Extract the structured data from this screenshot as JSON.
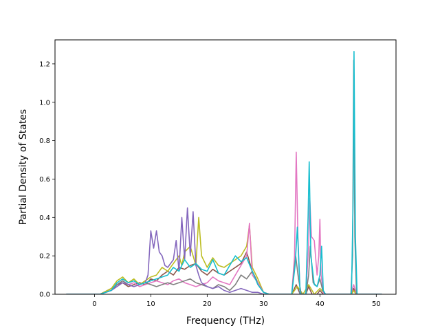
{
  "chart_data": {
    "type": "line",
    "title": "",
    "xlabel": "Frequency (THz)",
    "ylabel": "Partial Density of States",
    "xlim": [
      -7.0,
      53.5
    ],
    "ylim": [
      0.0,
      1.325
    ],
    "xticks": [
      0,
      10,
      20,
      30,
      40,
      50
    ],
    "yticks": [
      0.0,
      0.2,
      0.4,
      0.6,
      0.8,
      1.0,
      1.2
    ],
    "xtick_labels": [
      "0",
      "10",
      "20",
      "30",
      "40",
      "50"
    ],
    "ytick_labels": [
      "0.0",
      "0.2",
      "0.4",
      "0.6",
      "0.8",
      "1.0",
      "1.2"
    ],
    "grid": false,
    "legend": "none",
    "series": [
      {
        "color": "#8c564b",
        "x": [
          -5,
          1,
          3,
          4,
          5,
          6,
          7,
          8,
          9,
          10,
          11,
          12,
          13,
          14,
          15,
          16,
          17,
          18,
          19,
          20,
          21,
          22,
          23,
          24,
          25,
          26,
          27,
          28,
          29,
          30,
          31,
          35,
          35.8,
          36.5,
          37.5,
          38,
          38.6,
          39.5,
          40,
          40.6,
          41,
          45.6,
          46,
          46.4,
          47,
          51
        ],
        "y": [
          0,
          0,
          0.03,
          0.05,
          0.06,
          0.04,
          0.05,
          0.06,
          0.05,
          0.08,
          0.07,
          0.1,
          0.12,
          0.1,
          0.14,
          0.13,
          0.15,
          0.16,
          0.12,
          0.1,
          0.13,
          0.11,
          0.1,
          0.12,
          0.14,
          0.16,
          0.22,
          0.12,
          0.06,
          0.01,
          0,
          0,
          0.05,
          0,
          0,
          0.04,
          0,
          0,
          0.02,
          0,
          0,
          0,
          0.03,
          0,
          0,
          0
        ]
      },
      {
        "color": "#bcbd22",
        "x": [
          -5,
          1,
          3,
          4,
          5,
          6,
          7,
          8,
          9,
          10,
          11,
          12,
          13,
          14,
          15,
          15.5,
          16,
          17,
          18,
          18.5,
          19,
          20,
          21,
          22,
          23,
          24,
          25,
          26,
          27,
          27.5,
          28,
          29,
          30,
          31,
          35,
          36,
          37,
          38,
          39,
          40,
          41,
          45.6,
          46,
          46.4,
          47,
          51
        ],
        "y": [
          0,
          0,
          0.03,
          0.07,
          0.09,
          0.06,
          0.08,
          0.05,
          0.07,
          0.09,
          0.1,
          0.14,
          0.12,
          0.16,
          0.2,
          0.15,
          0.22,
          0.25,
          0.15,
          0.4,
          0.2,
          0.14,
          0.19,
          0.15,
          0.14,
          0.16,
          0.18,
          0.2,
          0.25,
          0.36,
          0.14,
          0.08,
          0.01,
          0,
          0,
          0.04,
          0,
          0.05,
          0,
          0.03,
          0,
          0,
          0.02,
          0,
          0,
          0
        ]
      },
      {
        "color": "#e377c2",
        "x": [
          -5,
          1,
          3,
          4,
          5,
          6,
          7,
          8,
          9,
          10,
          11,
          12,
          13,
          14,
          15,
          16,
          17,
          18,
          19,
          20,
          21,
          22,
          23,
          24,
          25,
          26,
          27,
          27.5,
          28,
          29,
          30,
          31,
          35,
          35.5,
          35.8,
          36.1,
          36.5,
          37.5,
          38,
          38.2,
          38.5,
          39,
          39.5,
          39.8,
          40,
          40.2,
          40.6,
          41,
          45.5,
          46,
          46.5,
          51
        ],
        "y": [
          0,
          0,
          0.02,
          0.05,
          0.07,
          0.05,
          0.06,
          0.04,
          0.05,
          0.06,
          0.07,
          0.06,
          0.05,
          0.07,
          0.08,
          0.06,
          0.05,
          0.04,
          0.05,
          0.06,
          0.09,
          0.07,
          0.06,
          0.05,
          0.1,
          0.15,
          0.2,
          0.37,
          0.1,
          0.06,
          0.01,
          0,
          0,
          0.2,
          0.74,
          0.3,
          0,
          0,
          0.25,
          0.5,
          0.3,
          0.28,
          0.1,
          0.2,
          0.39,
          0.1,
          0.01,
          0,
          0,
          0.05,
          0,
          0
        ]
      },
      {
        "color": "#7f7f7f",
        "x": [
          -5,
          1,
          3,
          4,
          5,
          6,
          7,
          8,
          9,
          10,
          11,
          12,
          13,
          14,
          15,
          16,
          17,
          18,
          19,
          20,
          21,
          22,
          23,
          24,
          25,
          26,
          27,
          28,
          29,
          30,
          31,
          35,
          35.7,
          36.2,
          36.7,
          37.5,
          38,
          38.3,
          38.8,
          39.5,
          40,
          40.5,
          41,
          45.5,
          45.8,
          46,
          46.2,
          46.5,
          51
        ],
        "y": [
          0,
          0,
          0.02,
          0.05,
          0.07,
          0.05,
          0.04,
          0.05,
          0.06,
          0.05,
          0.04,
          0.05,
          0.06,
          0.05,
          0.06,
          0.07,
          0.08,
          0.06,
          0.05,
          0.04,
          0.03,
          0.05,
          0.04,
          0.02,
          0.05,
          0.1,
          0.08,
          0.12,
          0.05,
          0.01,
          0,
          0,
          0.2,
          0.08,
          0,
          0,
          0.1,
          0.25,
          0.06,
          0.04,
          0.08,
          0.02,
          0,
          0,
          0.2,
          1.22,
          0.3,
          0,
          0
        ]
      },
      {
        "color": "#8467bd",
        "x": [
          -5,
          1,
          3,
          4,
          5,
          6,
          7,
          8,
          9,
          9.5,
          10,
          10.5,
          11,
          11.5,
          12,
          12.5,
          13,
          14,
          14.5,
          15,
          15.5,
          16,
          16.5,
          17,
          17.5,
          18,
          18.5,
          19,
          20,
          21,
          22,
          23,
          24,
          25,
          26,
          27,
          28,
          29,
          30,
          31,
          46,
          51
        ],
        "y": [
          0,
          0,
          0.02,
          0.04,
          0.06,
          0.05,
          0.04,
          0.05,
          0.06,
          0.1,
          0.33,
          0.24,
          0.33,
          0.22,
          0.2,
          0.15,
          0.14,
          0.18,
          0.28,
          0.12,
          0.4,
          0.18,
          0.45,
          0.2,
          0.43,
          0.15,
          0.1,
          0.06,
          0.04,
          0.03,
          0.04,
          0.02,
          0.01,
          0.02,
          0.03,
          0.02,
          0.01,
          0.01,
          0,
          0,
          0,
          0
        ]
      },
      {
        "color": "#17becf",
        "x": [
          -5,
          1,
          3,
          4,
          5,
          6,
          7,
          8,
          9,
          10,
          11,
          12,
          13,
          14,
          15,
          16,
          17,
          18,
          19,
          20,
          21,
          22,
          23,
          24,
          25,
          26,
          27,
          28,
          29,
          30,
          31,
          35,
          35.6,
          36,
          36.5,
          37.5,
          37.9,
          38.1,
          38.4,
          39,
          39.5,
          40,
          40.3,
          40.6,
          41,
          45.6,
          45.9,
          46.05,
          46.3,
          46.6,
          51
        ],
        "y": [
          0,
          0,
          0.02,
          0.06,
          0.08,
          0.06,
          0.07,
          0.05,
          0.06,
          0.07,
          0.08,
          0.09,
          0.1,
          0.14,
          0.12,
          0.18,
          0.14,
          0.16,
          0.13,
          0.12,
          0.18,
          0.11,
          0.1,
          0.15,
          0.2,
          0.17,
          0.19,
          0.12,
          0.05,
          0.01,
          0,
          0,
          0.15,
          0.35,
          0,
          0,
          0.4,
          0.69,
          0.2,
          0.05,
          0.04,
          0.1,
          0.25,
          0.02,
          0,
          0,
          0.5,
          1.265,
          0.3,
          0,
          0
        ]
      }
    ]
  }
}
